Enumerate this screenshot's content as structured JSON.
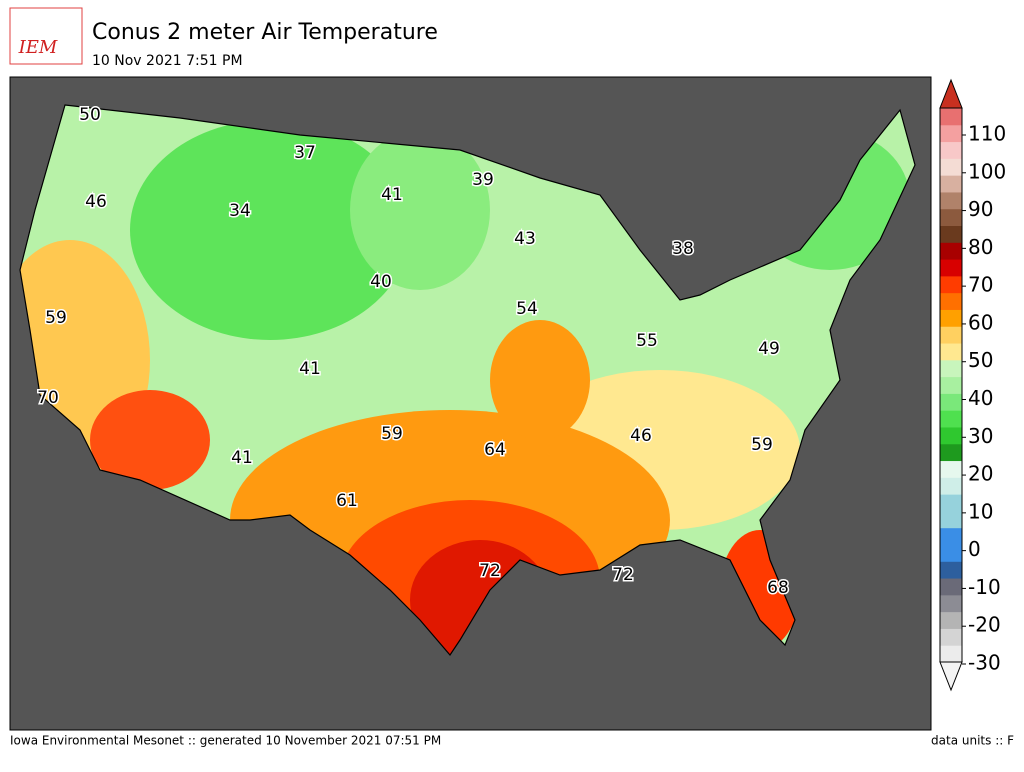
{
  "header": {
    "logo_text": "IEM",
    "title": "Conus 2 meter Air Temperature",
    "subtitle": "10 Nov 2021 7:51 PM"
  },
  "map": {
    "labels": [
      50,
      37,
      41,
      39,
      46,
      34,
      43,
      38,
      40,
      54,
      59,
      55,
      49,
      70,
      41,
      59,
      64,
      46,
      59,
      41,
      61,
      72,
      72,
      68
    ]
  },
  "colorbar": {
    "ticks": [
      -30,
      -20,
      -10,
      0,
      10,
      20,
      30,
      40,
      50,
      60,
      70,
      80,
      90,
      100,
      110
    ],
    "colors": [
      "#ececec",
      "#d4d4d4",
      "#b4b4b4",
      "#8c8c94",
      "#6a6a78",
      "#2d5f9e",
      "#3a8ee6",
      "#3a8ee6",
      "#96d2dc",
      "#96d2dc",
      "#cfeee8",
      "#e6f8ee",
      "#1e9a1e",
      "#2fc82f",
      "#4fe04f",
      "#7ae87a",
      "#a8f0a0",
      "#c8f5bc",
      "#ffe890",
      "#ffd060",
      "#ffa000",
      "#ff7000",
      "#ff3c00",
      "#d80000",
      "#a80000",
      "#6a3a1e",
      "#8c5a3e",
      "#b0826a",
      "#d8b0a0",
      "#f4dcd4",
      "#f8c8c8",
      "#f4a0a0",
      "#e87070"
    ]
  },
  "footer": {
    "left": "Iowa Environmental Mesonet :: generated 10 November 2021 07:51 PM",
    "right": "data units :: F"
  }
}
